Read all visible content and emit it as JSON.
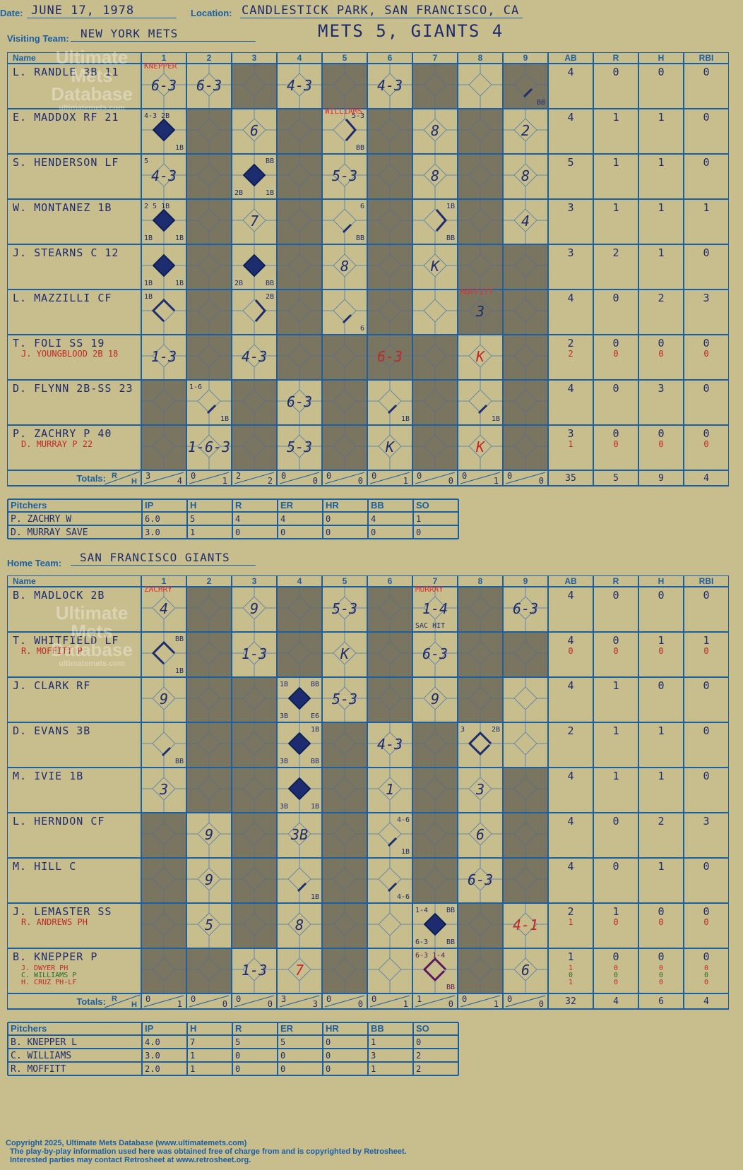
{
  "header": {
    "date_label": "Date:",
    "date": "JUNE 17, 1978",
    "location_label": "Location:",
    "location": "CANDLESTICK PARK, SAN FRANCISCO, CA",
    "visiting_label": "Visiting Team:",
    "visiting": "NEW YORK METS",
    "score": "METS 5, GIANTS 4",
    "home_label": "Home Team:",
    "home": "SAN FRANCISCO GIANTS"
  },
  "watermark": {
    "line1": "Ultimate",
    "line2": "Mets",
    "line3": "Database",
    "url": "ultimatemets.com"
  },
  "columns": [
    "Name",
    "1",
    "2",
    "3",
    "4",
    "5",
    "6",
    "7",
    "8",
    "9",
    "AB",
    "R",
    "H",
    "RBI"
  ],
  "totals_label": "Totals:",
  "rh_label": [
    "R",
    "H"
  ],
  "pitch_cols": [
    "Pitchers",
    "IP",
    "H",
    "R",
    "ER",
    "HR",
    "BB",
    "SO"
  ],
  "colors": {
    "ink": "#1d2c6e",
    "grid": "#1b5fa3",
    "shade": "#7a7560",
    "paper": "#c8bd8c",
    "red": "#c0282a",
    "note": "#e03030",
    "diamond": "#1d2c6e"
  },
  "visitors": {
    "shade": [
      [
        2,
        4,
        6,
        8
      ],
      [
        1,
        3,
        5,
        7
      ],
      [
        1,
        3,
        5,
        7
      ],
      [
        1,
        3,
        5,
        7
      ],
      [
        1,
        3,
        5,
        7,
        8
      ],
      [
        1,
        3,
        5,
        7,
        8
      ],
      [
        1,
        3,
        4,
        5,
        6,
        8
      ],
      [
        0,
        2,
        4,
        6,
        8
      ],
      [
        0,
        2,
        4,
        6,
        8
      ]
    ],
    "rows": [
      {
        "name": "L. RANDLE 3B  11",
        "sub": "",
        "stats": [
          "4",
          "0",
          "0",
          "0"
        ],
        "sub_stats": [],
        "cells": {
          "0": {
            "t": "6-3",
            "n": "KNEPPER"
          },
          "1": {
            "t": "6-3"
          },
          "3": {
            "t": "4-3"
          },
          "5": {
            "t": "4-3"
          },
          "8": {
            "br": "BB",
            "path": 1
          }
        }
      },
      {
        "name": "E. MADDOX RF  21",
        "sub": "",
        "stats": [
          "4",
          "1",
          "1",
          "0"
        ],
        "sub_stats": [],
        "cells": {
          "0": {
            "fill": 1,
            "tl": "4-3 2B",
            "br": "1B"
          },
          "2": {
            "t": "6"
          },
          "4": {
            "tr": "5-3",
            "br": "BB",
            "path": 2,
            "n": "WILLIAMS"
          },
          "6": {
            "t": "8"
          },
          "8": {
            "t": "2"
          }
        }
      },
      {
        "name": "S. HENDERSON LF",
        "sub": "",
        "stats": [
          "5",
          "1",
          "1",
          "0"
        ],
        "sub_stats": [],
        "cells": {
          "0": {
            "tl": "5",
            "t": "4-3"
          },
          "2": {
            "fill": 1,
            "tr": "BB",
            "bl": "2B",
            "br": "1B"
          },
          "4": {
            "t": "5-3"
          },
          "6": {
            "t": "8"
          },
          "8": {
            "t": "8"
          }
        }
      },
      {
        "name": "W. MONTANEZ 1B",
        "sub": "",
        "stats": [
          "3",
          "1",
          "1",
          "1"
        ],
        "sub_stats": [],
        "cells": {
          "0": {
            "fill": 1,
            "tl": "2 5 1B",
            "bl": "1B",
            "br": "1B"
          },
          "2": {
            "t": "7"
          },
          "4": {
            "tr": "6",
            "br": "BB",
            "path": 1
          },
          "6": {
            "tr": "1B",
            "br": "BB",
            "path": 2
          },
          "8": {
            "t": "4"
          }
        }
      },
      {
        "name": "J. STEARNS C  12",
        "sub": "",
        "stats": [
          "3",
          "2",
          "1",
          "0"
        ],
        "sub_stats": [],
        "cells": {
          "0": {
            "fill": 1,
            "bl": "1B",
            "br": "1B"
          },
          "2": {
            "fill": 1,
            "bl": "2B",
            "br": "BB"
          },
          "4": {
            "t": "8"
          },
          "6": {
            "t": "K"
          }
        }
      },
      {
        "name": "L. MAZZILLI CF",
        "sub": "",
        "stats": [
          "4",
          "0",
          "2",
          "3"
        ],
        "sub_stats": [],
        "cells": {
          "0": {
            "tl": "1B",
            "path": 3
          },
          "2": {
            "tr": "2B",
            "path": 2
          },
          "4": {
            "br": "6",
            "path": 1
          },
          "7": {
            "t": "3",
            "n": "MOFFITT"
          }
        }
      },
      {
        "name": "T. FOLI SS  19",
        "sub": "J. YOUNGBLOOD 2B  18",
        "stats": [
          "2",
          "0",
          "0",
          "0"
        ],
        "sub_stats": [
          "2",
          "0",
          "0",
          "0"
        ],
        "cells": {
          "0": {
            "t": "1-3"
          },
          "2": {
            "t": "4-3"
          },
          "5": {
            "t": "6-3",
            "red": 1
          },
          "7": {
            "t": "K",
            "red": 1
          }
        }
      },
      {
        "name": "D. FLYNN 2B-SS  23",
        "sub": "",
        "stats": [
          "4",
          "0",
          "3",
          "0"
        ],
        "sub_stats": [],
        "cells": {
          "1": {
            "tl": "1-6",
            "br": "1B",
            "path": 1
          },
          "3": {
            "t": "6-3"
          },
          "5": {
            "br": "1B",
            "path": 1
          },
          "7": {
            "br": "1B",
            "path": 1
          }
        }
      },
      {
        "name": "P. ZACHRY P  40",
        "sub": "D. MURRAY P  22",
        "stats": [
          "3",
          "0",
          "0",
          "0"
        ],
        "sub_stats": [
          "1",
          "0",
          "0",
          "0"
        ],
        "cells": {
          "1": {
            "t": "1-6-3"
          },
          "3": {
            "t": "5-3"
          },
          "5": {
            "t": "K"
          },
          "7": {
            "t": "K",
            "red": 1
          }
        }
      }
    ],
    "totals": [
      [
        "3",
        "4"
      ],
      [
        "0",
        "1"
      ],
      [
        "2",
        "2"
      ],
      [
        "0",
        "0"
      ],
      [
        "0",
        "0"
      ],
      [
        "0",
        "1"
      ],
      [
        "0",
        "0"
      ],
      [
        "0",
        "1"
      ],
      [
        "0",
        "0"
      ]
    ],
    "total_stats": [
      "35",
      "5",
      "9",
      "4"
    ],
    "pitchers": [
      {
        "name": "P. ZACHRY  W",
        "ip": "6.0",
        "h": "5",
        "r": "4",
        "er": "4",
        "hr": "0",
        "bb": "4",
        "so": "1"
      },
      {
        "name": "D. MURRAY  SAVE",
        "ip": "3.0",
        "h": "1",
        "r": "0",
        "er": "0",
        "hr": "0",
        "bb": "0",
        "so": "0"
      }
    ]
  },
  "home": {
    "shade": [
      [
        1,
        3,
        5,
        7
      ],
      [
        1,
        3,
        5,
        7,
        8
      ],
      [
        1,
        2,
        5,
        7
      ],
      [
        1,
        2,
        4,
        6
      ],
      [
        1,
        2,
        4,
        6,
        8
      ],
      [
        0,
        2,
        4,
        6,
        8
      ],
      [
        0,
        2,
        4,
        6,
        8
      ],
      [
        0,
        2,
        4,
        7
      ],
      [
        0,
        1,
        4,
        7
      ]
    ],
    "rows": [
      {
        "name": "B. MADLOCK 2B",
        "sub": "",
        "stats": [
          "4",
          "0",
          "0",
          "0"
        ],
        "sub_stats": [],
        "cells": {
          "0": {
            "t": "4",
            "n": "ZACHRY"
          },
          "2": {
            "t": "9"
          },
          "4": {
            "t": "5-3"
          },
          "6": {
            "t": "1-4",
            "bl": "SAC HIT",
            "n": "MURRAY"
          },
          "8": {
            "t": "6-3"
          }
        }
      },
      {
        "name": "T. WHITFIELD LF",
        "sub": "R. MOFFITT P",
        "stats": [
          "4",
          "0",
          "1",
          "1"
        ],
        "sub_stats": [
          "0",
          "0",
          "0",
          "0"
        ],
        "cells": {
          "0": {
            "tr": "BB",
            "br": "1B",
            "path": 3
          },
          "2": {
            "t": "1-3"
          },
          "4": {
            "t": "K"
          },
          "6": {
            "t": "6-3"
          }
        }
      },
      {
        "name": "J. CLARK RF",
        "sub": "",
        "stats": [
          "4",
          "1",
          "0",
          "0"
        ],
        "sub_stats": [],
        "cells": {
          "0": {
            "t": "9"
          },
          "3": {
            "fill": 1,
            "tl": "1B",
            "tr": "BB",
            "bl": "3B",
            "br": "E6"
          },
          "4": {
            "t": "5-3"
          },
          "6": {
            "t": "9"
          }
        }
      },
      {
        "name": "D. EVANS 3B",
        "sub": "",
        "stats": [
          "2",
          "1",
          "1",
          "0"
        ],
        "sub_stats": [],
        "cells": {
          "0": {
            "br": "BB",
            "path": 1
          },
          "3": {
            "fill": 1,
            "tr": "1B",
            "bl": "3B",
            "br": "BB"
          },
          "5": {
            "t": "4-3"
          },
          "7": {
            "tl": "3",
            "tr": "2B",
            "path": 4
          }
        }
      },
      {
        "name": "M. IVIE 1B",
        "sub": "",
        "stats": [
          "4",
          "1",
          "1",
          "0"
        ],
        "sub_stats": [],
        "cells": {
          "0": {
            "t": "3"
          },
          "3": {
            "fill": 1,
            "bl": "3B",
            "br": "1B"
          },
          "5": {
            "t": "1"
          },
          "7": {
            "t": "3"
          }
        }
      },
      {
        "name": "L. HERNDON CF",
        "sub": "",
        "stats": [
          "4",
          "0",
          "2",
          "3"
        ],
        "sub_stats": [],
        "cells": {
          "1": {
            "t": "9"
          },
          "3": {
            "t": "3B"
          },
          "5": {
            "tr": "4-6",
            "br": "1B",
            "path": 1
          },
          "7": {
            "t": "6"
          }
        }
      },
      {
        "name": "M. HILL C",
        "sub": "",
        "stats": [
          "4",
          "0",
          "1",
          "0"
        ],
        "sub_stats": [],
        "cells": {
          "1": {
            "t": "9"
          },
          "3": {
            "br": "1B",
            "path": 1
          },
          "5": {
            "br": "4-6",
            "path": 1
          },
          "7": {
            "t": "6-3"
          }
        }
      },
      {
        "name": "J. LEMASTER SS",
        "sub": "R. ANDREWS PH",
        "stats": [
          "2",
          "1",
          "0",
          "0"
        ],
        "sub_stats": [
          "1",
          "0",
          "0",
          "0"
        ],
        "cells": {
          "1": {
            "t": "5"
          },
          "3": {
            "t": "8"
          },
          "6": {
            "fill": 1,
            "tl": "1-4",
            "tr": "BB",
            "bl": "6-3",
            "br": "BB"
          },
          "8": {
            "t": "4-1",
            "red": 1
          }
        }
      },
      {
        "name": "B. KNEPPER P",
        "sub": "J. DWYER PH",
        "sub2": "C. WILLIAMS P",
        "sub3": "H. CRUZ PH-LF",
        "stats": [
          "1",
          "0",
          "0",
          "0"
        ],
        "sub_stats": [
          "1",
          "0",
          "0",
          "0"
        ],
        "sub_stats2": [
          "0",
          "0",
          "0",
          "0"
        ],
        "sub_stats3": [
          "1",
          "0",
          "0",
          "0"
        ],
        "cells": {
          "2": {
            "t": "1-3"
          },
          "3": {
            "t": "7",
            "red": 1
          },
          "6": {
            "tl": "6-3 1-4",
            "br": "BB",
            "path": 4,
            "purple": 1
          },
          "8": {
            "t": "6"
          }
        }
      }
    ],
    "totals": [
      [
        "0",
        "1"
      ],
      [
        "0",
        "0"
      ],
      [
        "0",
        "0"
      ],
      [
        "3",
        "3"
      ],
      [
        "0",
        "0"
      ],
      [
        "0",
        "1"
      ],
      [
        "1",
        "0"
      ],
      [
        "0",
        "1"
      ],
      [
        "0",
        "0"
      ]
    ],
    "total_stats": [
      "32",
      "4",
      "6",
      "4"
    ],
    "pitchers": [
      {
        "name": "B. KNEPPER  L",
        "ip": "4.0",
        "h": "7",
        "r": "5",
        "er": "5",
        "hr": "0",
        "bb": "1",
        "so": "0"
      },
      {
        "name": "C. WILLIAMS",
        "ip": "3.0",
        "h": "1",
        "r": "0",
        "er": "0",
        "hr": "0",
        "bb": "3",
        "so": "2"
      },
      {
        "name": "R. MOFFITT",
        "ip": "2.0",
        "h": "1",
        "r": "0",
        "er": "0",
        "hr": "0",
        "bb": "1",
        "so": "2"
      }
    ]
  },
  "footer": {
    "line1": "Copyright 2025, Ultimate Mets Database (www.ultimatemets.com)",
    "line2": "The play-by-play information used here was obtained free of charge from and is copyrighted by Retrosheet.",
    "line3": "Interested parties may contact Retrosheet at www.retrosheet.org."
  }
}
